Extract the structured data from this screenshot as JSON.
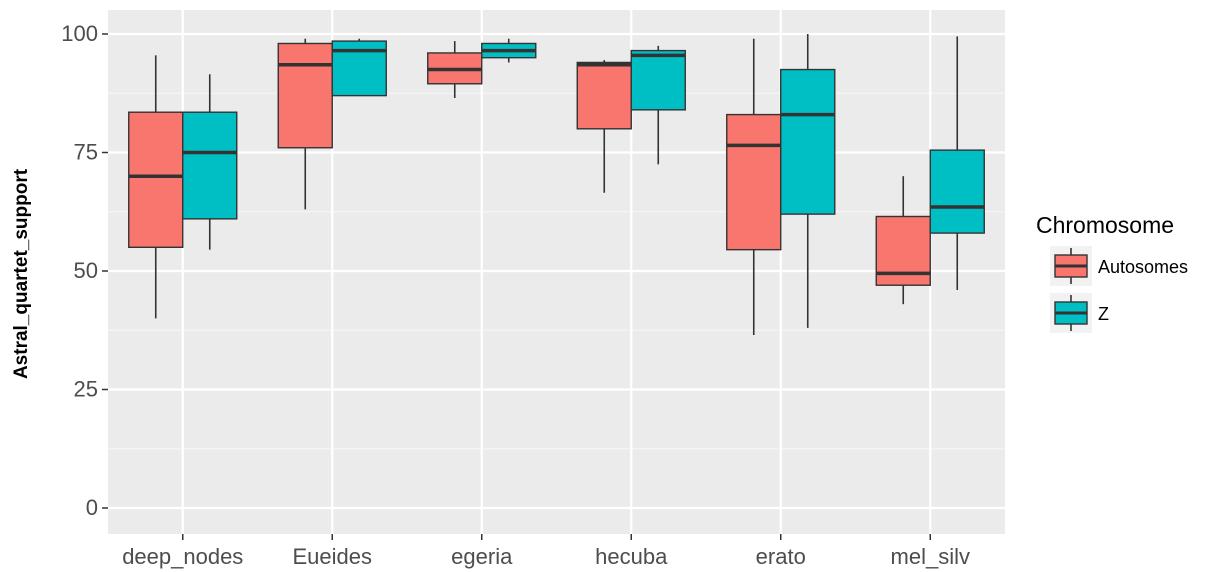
{
  "chart_data": {
    "type": "box",
    "ylabel": "Astral_quartet_support",
    "xlabel": "",
    "ylim": [
      -3,
      104
    ],
    "yticks": [
      0,
      25,
      50,
      75,
      100
    ],
    "grid": true,
    "legend_position": "right",
    "categories": [
      "deep_nodes",
      "Eueides",
      "egeria",
      "hecuba",
      "erato",
      "mel_silv"
    ],
    "legend_title": "Chromosome",
    "series": [
      {
        "name": "Autosomes",
        "color": "#F8766D",
        "boxes": [
          {
            "min": 40,
            "q1": 55,
            "median": 70,
            "q3": 83.5,
            "max": 95.5
          },
          {
            "min": 63,
            "q1": 76,
            "median": 93.5,
            "q3": 98,
            "max": 99
          },
          {
            "min": 86.5,
            "q1": 89.5,
            "median": 92.5,
            "q3": 96,
            "max": 98.5
          },
          {
            "min": 66.5,
            "q1": 80,
            "median": 93.5,
            "q3": 94,
            "max": 94.5
          },
          {
            "min": 36.5,
            "q1": 54.5,
            "median": 76.5,
            "q3": 83,
            "max": 99
          },
          {
            "min": 43,
            "q1": 47,
            "median": 49.5,
            "q3": 61.5,
            "max": 70
          }
        ]
      },
      {
        "name": "Z",
        "color": "#00BFC4",
        "boxes": [
          {
            "min": 54.5,
            "q1": 61,
            "median": 75,
            "q3": 83.5,
            "max": 91.5
          },
          {
            "min": 87,
            "q1": 87,
            "median": 96.5,
            "q3": 98.5,
            "max": 99
          },
          {
            "min": 94,
            "q1": 95,
            "median": 96.5,
            "q3": 98,
            "max": 99
          },
          {
            "min": 72.5,
            "q1": 84,
            "median": 95.5,
            "q3": 96.5,
            "max": 97.5
          },
          {
            "min": 38,
            "q1": 62,
            "median": 83,
            "q3": 92.5,
            "max": 100
          },
          {
            "min": 46,
            "q1": 58,
            "median": 63.5,
            "q3": 75.5,
            "max": 99.5
          }
        ]
      }
    ]
  }
}
